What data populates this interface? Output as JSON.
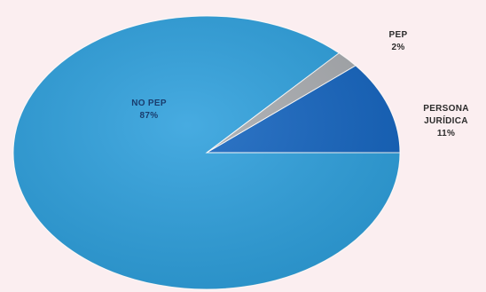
{
  "chart_data": {
    "type": "pie",
    "slices": [
      {
        "name": "NO PEP",
        "value": 87,
        "value_label": "87%",
        "color": "#2ea0dd"
      },
      {
        "name": "PEP",
        "value": 2,
        "value_label": "2%",
        "color": "#a9acb0"
      },
      {
        "name": "PERSONA JURÍDICA",
        "value": 11,
        "value_label": "11%",
        "color": "#1565c0"
      }
    ],
    "label_colors": {
      "inside": "#1a3d6e",
      "outside": "#2b2b2b"
    },
    "legend": "none"
  }
}
